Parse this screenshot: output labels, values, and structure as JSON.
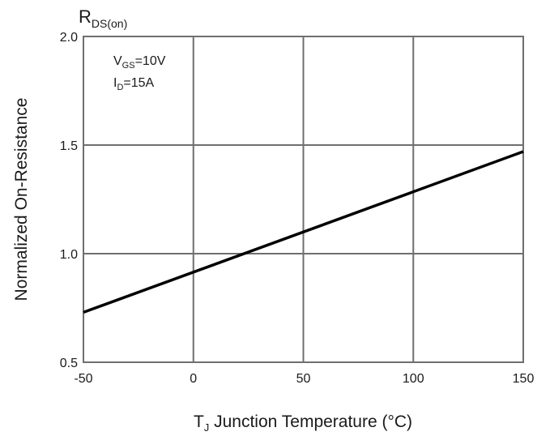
{
  "chart_data": {
    "type": "line",
    "title": "",
    "xlabel": {
      "main": "T",
      "sub": "J",
      "rest": " Junction Temperature (°C)"
    },
    "ylabel": "Normalized On-Resistance",
    "yunit": {
      "main": "R",
      "sub": "DS(on)"
    },
    "xlim": [
      -50,
      150
    ],
    "ylim": [
      0.5,
      2.0
    ],
    "x_ticks": [
      "-50",
      "0",
      "50",
      "100",
      "150"
    ],
    "y_ticks": [
      "0.5",
      "1.0",
      "1.5",
      "2.0"
    ],
    "grid": true,
    "annotations": [
      {
        "main": "V",
        "sub": "GS",
        "rest": "=10V"
      },
      {
        "main": "I",
        "sub": "D",
        "rest": "=15A"
      }
    ],
    "series": [
      {
        "x": [
          -50,
          150
        ],
        "y": [
          0.73,
          1.47
        ],
        "color": "#000000"
      }
    ]
  }
}
